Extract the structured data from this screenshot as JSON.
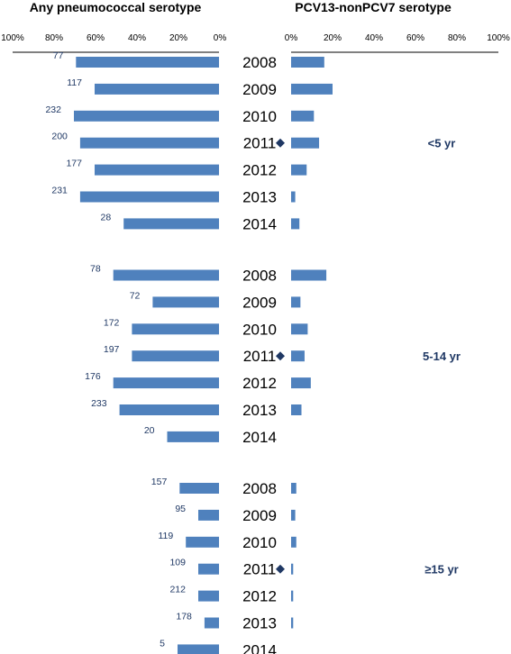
{
  "colors": {
    "bar": "#4f81bd",
    "text": "#1f3864",
    "axis": "#000000",
    "marker": "#1f3864"
  },
  "chart_data": {
    "type": "bar",
    "orientation": "horizontal",
    "panels": [
      {
        "title": "Any pneumococcal serotype",
        "direction": "leftward",
        "xlim": [
          0,
          100
        ],
        "ticks": [
          "100%",
          "80%",
          "60%",
          "40%",
          "20%",
          "0%"
        ]
      },
      {
        "title": "PCV13-nonPCV7 serotype",
        "direction": "rightward",
        "xlim": [
          0,
          100
        ],
        "ticks": [
          "0%",
          "20%",
          "40%",
          "60%",
          "80%",
          "100%"
        ]
      }
    ],
    "groups": [
      {
        "label": "<5 yr",
        "rows": [
          {
            "year": "2008",
            "count": "77",
            "any": 69,
            "pcv": 16,
            "marker": false
          },
          {
            "year": "2009",
            "count": "117",
            "any": 60,
            "pcv": 20,
            "marker": false
          },
          {
            "year": "2010",
            "count": "232",
            "any": 70,
            "pcv": 11,
            "marker": false
          },
          {
            "year": "2011",
            "count": "200",
            "any": 67,
            "pcv": 13.5,
            "marker": true
          },
          {
            "year": "2012",
            "count": "177",
            "any": 60,
            "pcv": 7.5,
            "marker": false
          },
          {
            "year": "2013",
            "count": "231",
            "any": 67,
            "pcv": 2,
            "marker": false
          },
          {
            "year": "2014",
            "count": "28",
            "any": 46,
            "pcv": 4,
            "marker": false
          }
        ]
      },
      {
        "label": "5-14 yr",
        "rows": [
          {
            "year": "2008",
            "count": "78",
            "any": 51,
            "pcv": 17,
            "marker": false
          },
          {
            "year": "2009",
            "count": "72",
            "any": 32,
            "pcv": 4.5,
            "marker": false
          },
          {
            "year": "2010",
            "count": "172",
            "any": 42,
            "pcv": 8,
            "marker": false
          },
          {
            "year": "2011",
            "count": "197",
            "any": 42,
            "pcv": 6.5,
            "marker": true
          },
          {
            "year": "2012",
            "count": "176",
            "any": 51,
            "pcv": 9.5,
            "marker": false
          },
          {
            "year": "2013",
            "count": "233",
            "any": 48,
            "pcv": 5,
            "marker": false
          },
          {
            "year": "2014",
            "count": "20",
            "any": 25,
            "pcv": 0,
            "marker": false
          }
        ]
      },
      {
        "label": "≥15 yr",
        "rows": [
          {
            "year": "2008",
            "count": "157",
            "any": 19,
            "pcv": 2.5,
            "marker": false
          },
          {
            "year": "2009",
            "count": "95",
            "any": 10,
            "pcv": 2,
            "marker": false
          },
          {
            "year": "2010",
            "count": "119",
            "any": 16,
            "pcv": 2.5,
            "marker": false
          },
          {
            "year": "2011",
            "count": "109",
            "any": 10,
            "pcv": 1,
            "marker": true
          },
          {
            "year": "2012",
            "count": "212",
            "any": 10,
            "pcv": 1,
            "marker": false
          },
          {
            "year": "2013",
            "count": "178",
            "any": 7,
            "pcv": 1,
            "marker": false
          },
          {
            "year": "2014",
            "count": "5",
            "any": 20,
            "pcv": 0,
            "marker": false
          }
        ]
      }
    ]
  }
}
